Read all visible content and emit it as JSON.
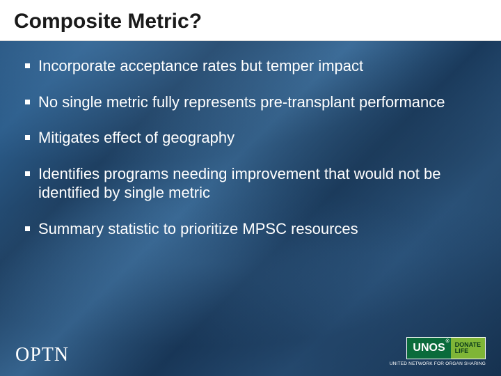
{
  "slide": {
    "title": "Composite Metric?",
    "bullets": [
      "Incorporate acceptance rates but temper impact",
      "No single metric fully represents pre-transplant performance",
      "Mitigates effect of geography",
      "Identifies programs needing improvement that would not be identified by single metric",
      "Summary statistic to prioritize MPSC resources"
    ]
  },
  "footer": {
    "left_logo_text": "OPTN",
    "unos_text": "UNOS",
    "donate_top": "DONATE",
    "donate_bottom": "LIFE",
    "unos_tagline": "UNITED NETWORK FOR ORGAN SHARING"
  },
  "colors": {
    "header_bg": "#ffffff",
    "title_color": "#1a1a1a",
    "body_text": "#ffffff",
    "unos_green": "#0a6b3b",
    "donate_green": "#7fb537"
  }
}
